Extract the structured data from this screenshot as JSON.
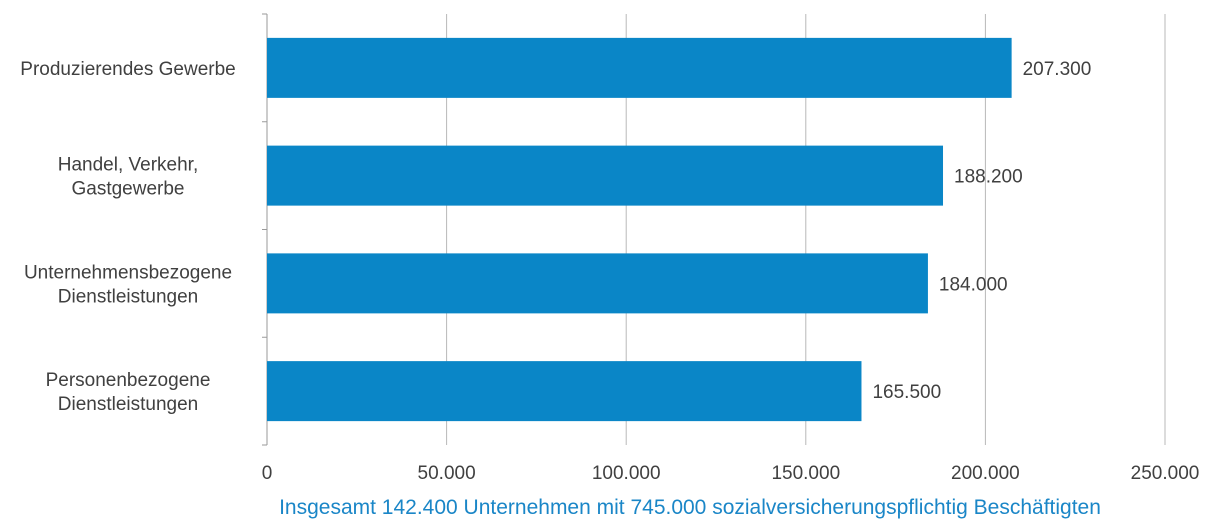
{
  "chart_data": {
    "type": "bar",
    "orientation": "horizontal",
    "categories": [
      [
        "Produzierendes Gewerbe"
      ],
      [
        "Handel, Verkehr,",
        "Gastgewerbe"
      ],
      [
        "Unternehmensbezogene",
        "Dienstleistungen"
      ],
      [
        "Personenbezogene",
        "Dienstleistungen"
      ]
    ],
    "values": [
      207300,
      188200,
      184000,
      165500
    ],
    "value_labels": [
      "207.300",
      "188.200",
      "184.000",
      "165.500"
    ],
    "xlim": [
      0,
      250000
    ],
    "x_ticks": [
      0,
      50000,
      100000,
      150000,
      200000,
      250000
    ],
    "x_tick_labels": [
      "0",
      "50.000",
      "100.000",
      "150.000",
      "200.000",
      "250.000"
    ],
    "grid": "vertical",
    "legend": "none",
    "bar_color": "#0a86c7",
    "footnote": "Insgesamt 142.400 Unternehmen mit 745.000 sozialversicherungspflichtig Beschäftigten",
    "footnote_color": "#1a86c7"
  }
}
